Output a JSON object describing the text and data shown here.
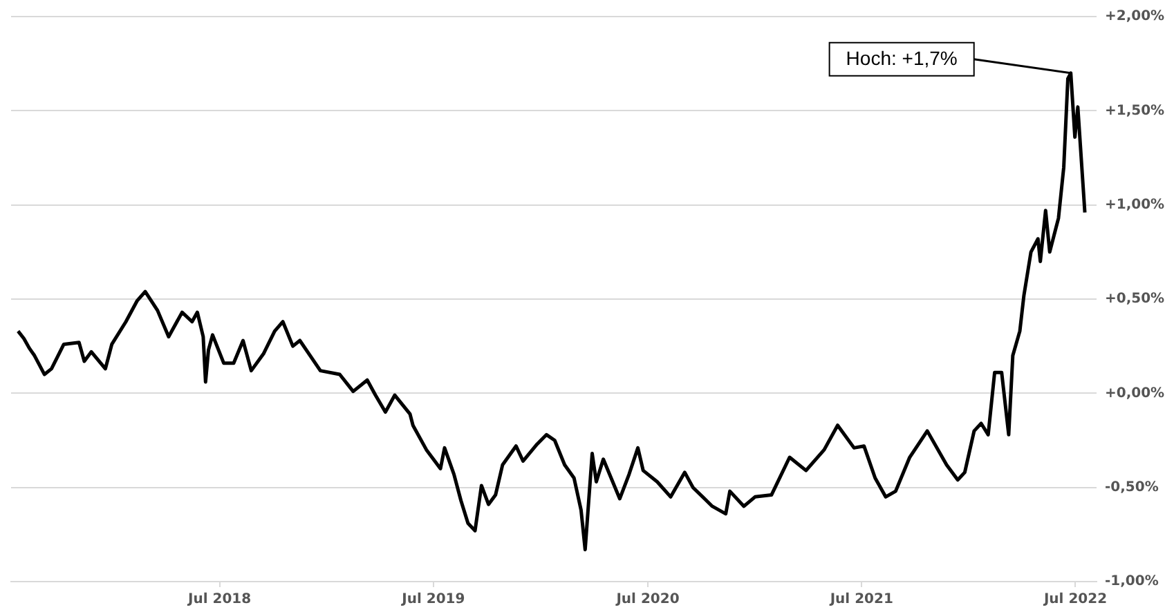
{
  "chart_data": {
    "type": "line",
    "x": [
      "2017-07-22",
      "2017-08-01",
      "2017-08-10",
      "2017-08-19",
      "2017-09-05",
      "2017-09-17",
      "2017-10-08",
      "2017-11-03",
      "2017-11-12",
      "2017-11-24",
      "2017-12-18",
      "2017-12-29",
      "2018-01-22",
      "2018-02-10",
      "2018-02-24",
      "2018-03-17",
      "2018-04-05",
      "2018-04-28",
      "2018-05-15",
      "2018-05-24",
      "2018-06-03",
      "2018-06-07",
      "2018-06-12",
      "2018-06-19",
      "2018-07-08",
      "2018-07-25",
      "2018-08-10",
      "2018-08-24",
      "2018-09-14",
      "2018-10-03",
      "2018-10-17",
      "2018-11-03",
      "2018-11-15",
      "2018-12-20",
      "2019-01-22",
      "2019-02-14",
      "2019-03-10",
      "2019-03-24",
      "2019-04-10",
      "2019-04-26",
      "2019-05-22",
      "2019-05-27",
      "2019-06-19",
      "2019-07-13",
      "2019-07-20",
      "2019-08-05",
      "2019-08-17",
      "2019-08-29",
      "2019-09-10",
      "2019-09-21",
      "2019-10-03",
      "2019-10-15",
      "2019-10-27",
      "2019-11-19",
      "2019-12-01",
      "2019-12-25",
      "2020-01-10",
      "2020-01-24",
      "2020-02-10",
      "2020-02-26",
      "2020-03-09",
      "2020-03-16",
      "2020-03-28",
      "2020-04-04",
      "2020-04-16",
      "2020-05-14",
      "2020-05-30",
      "2020-06-14",
      "2020-06-23",
      "2020-07-17",
      "2020-08-09",
      "2020-09-02",
      "2020-09-16",
      "2020-10-19",
      "2020-11-11",
      "2020-11-18",
      "2020-12-12",
      "2020-12-31",
      "2021-01-28",
      "2021-02-28",
      "2021-03-28",
      "2021-04-28",
      "2021-05-21",
      "2021-06-18",
      "2021-07-05",
      "2021-07-24",
      "2021-08-11",
      "2021-08-28",
      "2021-09-21",
      "2021-10-21",
      "2021-11-23",
      "2021-12-12",
      "2021-12-24",
      "2022-01-09",
      "2022-01-21",
      "2022-02-02",
      "2022-02-13",
      "2022-02-25",
      "2022-03-09",
      "2022-03-16",
      "2022-03-28",
      "2022-04-04",
      "2022-04-16",
      "2022-04-28",
      "2022-05-02",
      "2022-05-11",
      "2022-05-18",
      "2022-06-02",
      "2022-06-11",
      "2022-06-18",
      "2022-06-23",
      "2022-06-30",
      "2022-07-05",
      "2022-07-14",
      "2022-07-17"
    ],
    "series": [
      {
        "color": "#000000",
        "values": [
          0.33,
          0.29,
          0.24,
          0.2,
          0.1,
          0.13,
          0.26,
          0.27,
          0.17,
          0.22,
          0.13,
          0.26,
          0.38,
          0.49,
          0.54,
          0.44,
          0.3,
          0.43,
          0.38,
          0.43,
          0.3,
          0.06,
          0.23,
          0.31,
          0.16,
          0.16,
          0.28,
          0.12,
          0.21,
          0.33,
          0.38,
          0.25,
          0.28,
          0.12,
          0.1,
          0.01,
          0.07,
          -0.01,
          -0.1,
          -0.01,
          -0.11,
          -0.17,
          -0.3,
          -0.4,
          -0.29,
          -0.43,
          -0.57,
          -0.69,
          -0.73,
          -0.49,
          -0.59,
          -0.54,
          -0.38,
          -0.28,
          -0.36,
          -0.27,
          -0.22,
          -0.25,
          -0.38,
          -0.45,
          -0.62,
          -0.83,
          -0.32,
          -0.47,
          -0.35,
          -0.56,
          -0.43,
          -0.29,
          -0.41,
          -0.47,
          -0.55,
          -0.42,
          -0.5,
          -0.6,
          -0.64,
          -0.52,
          -0.6,
          -0.55,
          -0.54,
          -0.34,
          -0.41,
          -0.3,
          -0.17,
          -0.29,
          -0.28,
          -0.45,
          -0.55,
          -0.52,
          -0.34,
          -0.2,
          -0.38,
          -0.46,
          -0.42,
          -0.2,
          -0.16,
          -0.22,
          0.11,
          0.11,
          -0.22,
          0.2,
          0.33,
          0.52,
          0.75,
          0.82,
          0.7,
          0.97,
          0.75,
          0.93,
          1.2,
          1.67,
          1.7,
          1.36,
          1.52,
          1.1,
          0.96
        ]
      }
    ],
    "xlim": [
      "2017-07-10",
      "2022-08-06"
    ],
    "xticks": [
      {
        "value": "2018-07-01",
        "label": "Jul 2018"
      },
      {
        "value": "2019-07-01",
        "label": "Jul 2019"
      },
      {
        "value": "2020-07-01",
        "label": "Jul 2020"
      },
      {
        "value": "2021-07-01",
        "label": "Jul 2021"
      },
      {
        "value": "2022-07-01",
        "label": "Jul 2022"
      }
    ],
    "ylim": [
      -1,
      2
    ],
    "yticks": [
      {
        "value": -1,
        "label": "-1,00%"
      },
      {
        "value": -0.5,
        "label": "-0,50%"
      },
      {
        "value": 0,
        "label": "+0,00%"
      },
      {
        "value": 0.5,
        "label": "+0,50%"
      },
      {
        "value": 1,
        "label": "+1,00%"
      },
      {
        "value": 1.5,
        "label": "+1,50%"
      },
      {
        "value": 2,
        "label": "+2,00%"
      }
    ],
    "grid": "y",
    "annotations": [
      {
        "text": "Hoch: +1,7%",
        "x": "2022-06-23",
        "y": 1.7
      }
    ]
  }
}
